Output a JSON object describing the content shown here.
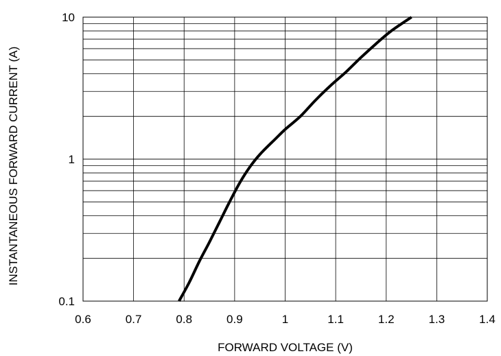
{
  "chart_data": {
    "type": "line",
    "title": "",
    "xlabel": "FORWARD VOLTAGE (V)",
    "ylabel": "INSTANTANEOUS FORWARD CURRENT (A)",
    "xlim": [
      0.6,
      1.4
    ],
    "ylim": [
      0.1,
      10
    ],
    "yscale": "log",
    "grid": true,
    "x_ticks": [
      "0.6",
      "0.7",
      "0.8",
      "0.9",
      "1",
      "1.1",
      "1.2",
      "1.3",
      "1.4"
    ],
    "y_ticks": [
      "0.1",
      "1",
      "10"
    ],
    "series": [
      {
        "x": [
          0.79,
          0.81,
          0.83,
          0.85,
          0.87,
          0.89,
          0.91,
          0.93,
          0.95,
          0.98,
          1.0,
          1.03,
          1.06,
          1.09,
          1.12,
          1.15,
          1.18,
          1.21,
          1.25
        ],
        "y": [
          0.1,
          0.135,
          0.19,
          0.26,
          0.36,
          0.5,
          0.68,
          0.88,
          1.08,
          1.38,
          1.62,
          2.0,
          2.6,
          3.3,
          4.1,
          5.2,
          6.5,
          8.0,
          10.0
        ]
      }
    ],
    "colors": {
      "line": "#000000",
      "grid": "#000000"
    }
  }
}
